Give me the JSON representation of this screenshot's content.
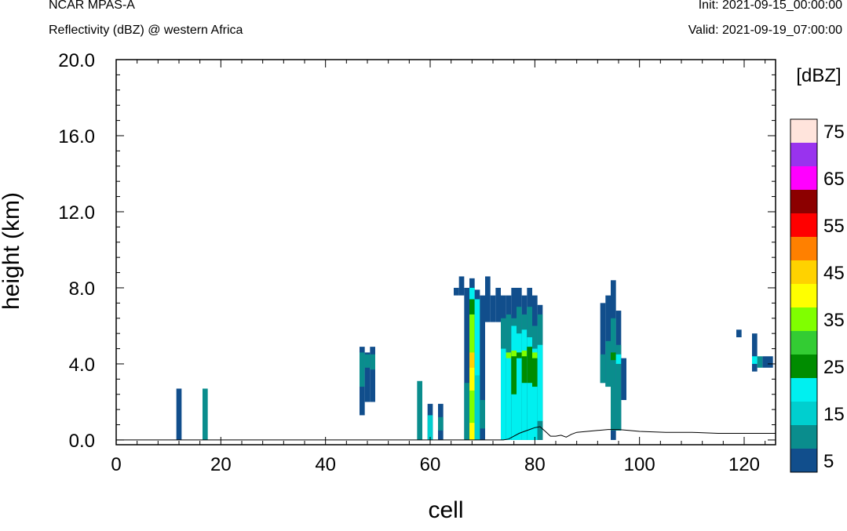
{
  "header": {
    "title": "NCAR MPAS-A",
    "subtitle": "Reflectivity (dBZ) @ western Africa",
    "init": "Init: 2021-09-15_00:00:00",
    "valid": "Valid: 2021-09-19_07:00:00"
  },
  "chart_data": {
    "type": "heatmap",
    "xlabel": "cell",
    "ylabel": "height (km)",
    "xlim": [
      0,
      126
    ],
    "ylim": [
      -0.25,
      20.0
    ],
    "x_ticks": [
      0,
      20,
      40,
      60,
      80,
      100,
      120
    ],
    "x_tick_labels": [
      "0",
      "20",
      "40",
      "60",
      "80",
      "100",
      "120"
    ],
    "y_ticks": [
      0,
      4,
      8,
      12,
      16,
      20
    ],
    "y_tick_labels": [
      "0.0",
      "4.0",
      "8.0",
      "12.0",
      "16.0",
      "20.0"
    ],
    "grid": false,
    "colorbar": {
      "title": "[dBZ]",
      "levels": [
        5,
        10,
        15,
        20,
        25,
        30,
        35,
        40,
        45,
        50,
        55,
        60,
        65,
        70,
        75
      ],
      "labels": [
        "5",
        "15",
        "25",
        "35",
        "45",
        "55",
        "65",
        "75"
      ],
      "colors": [
        "#114e8c",
        "#0a8d8d",
        "#00cfcf",
        "#00f0f0",
        "#008c00",
        "#33cc33",
        "#80ff00",
        "#ffff00",
        "#ffd200",
        "#ff8000",
        "#ff0000",
        "#8c0000",
        "#ff00ff",
        "#9933ee",
        "#ffe4dc"
      ]
    },
    "cells": [
      {
        "x": [
          11.5,
          12.5
        ],
        "y": [
          0,
          2.7
        ],
        "c": "#114e8c"
      },
      {
        "x": [
          16.5,
          17.5
        ],
        "y": [
          0,
          2.7
        ],
        "c": "#0a8d8d"
      },
      {
        "x": [
          46.5,
          47.5
        ],
        "y": [
          1.3,
          4.9
        ],
        "c": "#114e8c"
      },
      {
        "x": [
          46.5,
          47.5
        ],
        "y": [
          2.8,
          4.6
        ],
        "c": "#0a8d8d"
      },
      {
        "x": [
          47.5,
          48.5
        ],
        "y": [
          2.0,
          4.6
        ],
        "c": "#114e8c"
      },
      {
        "x": [
          47.5,
          48.5
        ],
        "y": [
          3.8,
          4.5
        ],
        "c": "#0a8d8d"
      },
      {
        "x": [
          48.5,
          49.5
        ],
        "y": [
          2.0,
          4.9
        ],
        "c": "#114e8c"
      },
      {
        "x": [
          48.5,
          49.5
        ],
        "y": [
          3.7,
          4.5
        ],
        "c": "#0a8d8d"
      },
      {
        "x": [
          57.5,
          58.5
        ],
        "y": [
          0,
          3.1
        ],
        "c": "#0a8d8d"
      },
      {
        "x": [
          59.5,
          60.5
        ],
        "y": [
          0,
          1.9
        ],
        "c": "#114e8c"
      },
      {
        "x": [
          59.5,
          60.5
        ],
        "y": [
          0,
          1.3
        ],
        "c": "#00cfcf"
      },
      {
        "x": [
          61.5,
          62.5
        ],
        "y": [
          0,
          1.9
        ],
        "c": "#114e8c"
      },
      {
        "x": [
          61.5,
          62.5
        ],
        "y": [
          0.5,
          1.2
        ],
        "c": "#0a8d8d"
      },
      {
        "x": [
          64.5,
          65.5
        ],
        "y": [
          7.6,
          8.0
        ],
        "c": "#114e8c"
      },
      {
        "x": [
          65.5,
          66.5
        ],
        "y": [
          7.6,
          8.6
        ],
        "c": "#114e8c"
      },
      {
        "x": [
          66.5,
          67.5
        ],
        "y": [
          0,
          8.0
        ],
        "c": "#114e8c"
      },
      {
        "x": [
          66.5,
          67.5
        ],
        "y": [
          0,
          3.0
        ],
        "c": "#0a8d8d"
      },
      {
        "x": [
          67.5,
          68.5
        ],
        "y": [
          0,
          8.5
        ],
        "c": "#114e8c"
      },
      {
        "x": [
          67.5,
          68.5
        ],
        "y": [
          0,
          7.4
        ],
        "c": "#008c00"
      },
      {
        "x": [
          67.5,
          68.5
        ],
        "y": [
          0,
          6.6
        ],
        "c": "#80ff00"
      },
      {
        "x": [
          67.5,
          68.5
        ],
        "y": [
          0,
          4.6
        ],
        "c": "#ffd200"
      },
      {
        "x": [
          67.5,
          68.5
        ],
        "y": [
          0,
          3.8
        ],
        "c": "#ffff00"
      },
      {
        "x": [
          67.5,
          68.5
        ],
        "y": [
          0,
          2.6
        ],
        "c": "#80ff00"
      },
      {
        "x": [
          67.5,
          68.5
        ],
        "y": [
          0,
          0.9
        ],
        "c": "#ffff00"
      },
      {
        "x": [
          67.5,
          68.5
        ],
        "y": [
          7.4,
          8.0
        ],
        "c": "#00f0f0"
      },
      {
        "x": [
          68.5,
          69.5
        ],
        "y": [
          0,
          7.9
        ],
        "c": "#114e8c"
      },
      {
        "x": [
          68.5,
          69.5
        ],
        "y": [
          0,
          7.4
        ],
        "c": "#00f0f0"
      },
      {
        "x": [
          68.5,
          69.5
        ],
        "y": [
          0,
          3.4
        ],
        "c": "#00cfcf"
      },
      {
        "x": [
          69.5,
          70.5
        ],
        "y": [
          0,
          7.6
        ],
        "c": "#114e8c"
      },
      {
        "x": [
          69.5,
          70.5
        ],
        "y": [
          0.6,
          2.1
        ],
        "c": "#0a8d8d"
      },
      {
        "x": [
          70.5,
          71.5
        ],
        "y": [
          6.2,
          8.6
        ],
        "c": "#114e8c"
      },
      {
        "x": [
          71.5,
          72.5
        ],
        "y": [
          6.2,
          7.6
        ],
        "c": "#114e8c"
      },
      {
        "x": [
          72.5,
          73.5
        ],
        "y": [
          6.2,
          8.0
        ],
        "c": "#114e8c"
      },
      {
        "x": [
          73.5,
          74.5
        ],
        "y": [
          0,
          7.6
        ],
        "c": "#114e8c"
      },
      {
        "x": [
          73.5,
          74.5
        ],
        "y": [
          0,
          6.4
        ],
        "c": "#0a8d8d"
      },
      {
        "x": [
          73.5,
          74.5
        ],
        "y": [
          0,
          4.8
        ],
        "c": "#00f0f0"
      },
      {
        "x": [
          74.5,
          75.5
        ],
        "y": [
          0,
          7.6
        ],
        "c": "#114e8c"
      },
      {
        "x": [
          74.5,
          75.5
        ],
        "y": [
          0,
          6.6
        ],
        "c": "#0a8d8d"
      },
      {
        "x": [
          74.5,
          75.5
        ],
        "y": [
          0,
          4.6
        ],
        "c": "#00f0f0"
      },
      {
        "x": [
          74.5,
          75.5
        ],
        "y": [
          4.3,
          4.6
        ],
        "c": "#80ff00"
      },
      {
        "x": [
          75.5,
          76.5
        ],
        "y": [
          0,
          8.0
        ],
        "c": "#114e8c"
      },
      {
        "x": [
          75.5,
          76.5
        ],
        "y": [
          0,
          6.4
        ],
        "c": "#0a8d8d"
      },
      {
        "x": [
          75.5,
          76.5
        ],
        "y": [
          0,
          6.0
        ],
        "c": "#00f0f0"
      },
      {
        "x": [
          75.5,
          76.5
        ],
        "y": [
          2.4,
          4.6
        ],
        "c": "#008c00"
      },
      {
        "x": [
          75.5,
          76.5
        ],
        "y": [
          4.4,
          4.7
        ],
        "c": "#80ff00"
      },
      {
        "x": [
          76.5,
          77.5
        ],
        "y": [
          0,
          8.0
        ],
        "c": "#114e8c"
      },
      {
        "x": [
          76.5,
          77.5
        ],
        "y": [
          0,
          7.0
        ],
        "c": "#0a8d8d"
      },
      {
        "x": [
          76.5,
          77.5
        ],
        "y": [
          0,
          5.6
        ],
        "c": "#00f0f0"
      },
      {
        "x": [
          76.5,
          77.5
        ],
        "y": [
          4.3,
          4.6
        ],
        "c": "#008c00"
      },
      {
        "x": [
          77.5,
          78.5
        ],
        "y": [
          0,
          7.6
        ],
        "c": "#114e8c"
      },
      {
        "x": [
          77.5,
          78.5
        ],
        "y": [
          0,
          6.6
        ],
        "c": "#0a8d8d"
      },
      {
        "x": [
          77.5,
          78.5
        ],
        "y": [
          0,
          5.8
        ],
        "c": "#00f0f0"
      },
      {
        "x": [
          77.5,
          78.5
        ],
        "y": [
          3.0,
          4.6
        ],
        "c": "#008c00"
      },
      {
        "x": [
          77.5,
          78.5
        ],
        "y": [
          4.4,
          4.7
        ],
        "c": "#80ff00"
      },
      {
        "x": [
          78.5,
          79.5
        ],
        "y": [
          0,
          8.0
        ],
        "c": "#114e8c"
      },
      {
        "x": [
          78.5,
          79.5
        ],
        "y": [
          0,
          7.0
        ],
        "c": "#0a8d8d"
      },
      {
        "x": [
          78.5,
          79.5
        ],
        "y": [
          0,
          5.4
        ],
        "c": "#00f0f0"
      },
      {
        "x": [
          78.5,
          79.5
        ],
        "y": [
          3.0,
          4.9
        ],
        "c": "#008c00"
      },
      {
        "x": [
          79.5,
          80.5
        ],
        "y": [
          0,
          7.6
        ],
        "c": "#114e8c"
      },
      {
        "x": [
          79.5,
          80.5
        ],
        "y": [
          0,
          6.0
        ],
        "c": "#0a8d8d"
      },
      {
        "x": [
          79.5,
          80.5
        ],
        "y": [
          0,
          4.8
        ],
        "c": "#00f0f0"
      },
      {
        "x": [
          79.5,
          80.5
        ],
        "y": [
          2.8,
          4.4
        ],
        "c": "#008c00"
      },
      {
        "x": [
          79.5,
          80.5
        ],
        "y": [
          4.3,
          4.6
        ],
        "c": "#80ff00"
      },
      {
        "x": [
          80.5,
          81.5
        ],
        "y": [
          0,
          7.1
        ],
        "c": "#114e8c"
      },
      {
        "x": [
          80.5,
          81.5
        ],
        "y": [
          0,
          6.6
        ],
        "c": "#0a8d8d"
      },
      {
        "x": [
          80.5,
          81.5
        ],
        "y": [
          1.0,
          5.0
        ],
        "c": "#00f0f0"
      },
      {
        "x": [
          92.5,
          93.5
        ],
        "y": [
          3.0,
          7.2
        ],
        "c": "#114e8c"
      },
      {
        "x": [
          92.5,
          93.5
        ],
        "y": [
          3.0,
          4.5
        ],
        "c": "#0a8d8d"
      },
      {
        "x": [
          93.5,
          94.5
        ],
        "y": [
          2.8,
          7.6
        ],
        "c": "#114e8c"
      },
      {
        "x": [
          93.5,
          94.5
        ],
        "y": [
          2.8,
          5.2
        ],
        "c": "#0a8d8d"
      },
      {
        "x": [
          94.5,
          95.5
        ],
        "y": [
          0,
          8.4
        ],
        "c": "#114e8c"
      },
      {
        "x": [
          94.5,
          95.5
        ],
        "y": [
          0.5,
          6.4
        ],
        "c": "#0a8d8d"
      },
      {
        "x": [
          94.5,
          95.5
        ],
        "y": [
          4.2,
          4.6
        ],
        "c": "#008c00"
      },
      {
        "x": [
          95.5,
          96.5
        ],
        "y": [
          0.5,
          6.8
        ],
        "c": "#114e8c"
      },
      {
        "x": [
          95.5,
          96.5
        ],
        "y": [
          0.5,
          5.0
        ],
        "c": "#0a8d8d"
      },
      {
        "x": [
          95.5,
          96.5
        ],
        "y": [
          4.0,
          4.5
        ],
        "c": "#00f0f0"
      },
      {
        "x": [
          96.5,
          97.5
        ],
        "y": [
          2.1,
          4.3
        ],
        "c": "#114e8c"
      },
      {
        "x": [
          118.5,
          119.5
        ],
        "y": [
          5.4,
          5.8
        ],
        "c": "#114e8c"
      },
      {
        "x": [
          121.5,
          122.5
        ],
        "y": [
          3.6,
          5.6
        ],
        "c": "#114e8c"
      },
      {
        "x": [
          121.5,
          122.5
        ],
        "y": [
          4.0,
          4.4
        ],
        "c": "#00f0f0"
      },
      {
        "x": [
          122.5,
          123.5
        ],
        "y": [
          3.8,
          4.4
        ],
        "c": "#0a8d8d"
      },
      {
        "x": [
          123.5,
          124.5
        ],
        "y": [
          3.8,
          4.4
        ],
        "c": "#114e8c"
      },
      {
        "x": [
          124.5,
          125.5
        ],
        "y": [
          3.8,
          4.4
        ],
        "c": "#114e8c"
      }
    ],
    "terrain": {
      "x": [
        0,
        74,
        75,
        76,
        77,
        78,
        79,
        80,
        81,
        82,
        83,
        84,
        85,
        86,
        87,
        88,
        90,
        92,
        94,
        96,
        98,
        100,
        105,
        110,
        115,
        120,
        126
      ],
      "y": [
        0,
        0,
        0.05,
        0.2,
        0.35,
        0.45,
        0.55,
        0.65,
        0.7,
        0.45,
        0.2,
        0.2,
        0.25,
        0.15,
        0.3,
        0.4,
        0.45,
        0.5,
        0.55,
        0.55,
        0.5,
        0.45,
        0.4,
        0.4,
        0.35,
        0.35,
        0.35
      ]
    }
  }
}
